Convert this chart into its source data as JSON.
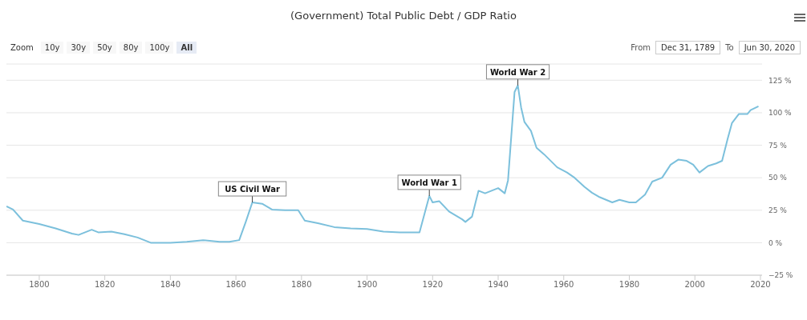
{
  "chart_data": {
    "type": "line",
    "title": "(Government) Total Public Debt / GDP Ratio",
    "x": [
      1790,
      1792,
      1795,
      1800,
      1805,
      1810,
      1812,
      1816,
      1818,
      1822,
      1826,
      1830,
      1834,
      1840,
      1845,
      1850,
      1855,
      1858,
      1861,
      1863,
      1865,
      1868,
      1871,
      1875,
      1879,
      1881,
      1885,
      1890,
      1895,
      1900,
      1905,
      1910,
      1916,
      1919,
      1920,
      1922,
      1925,
      1929,
      1930,
      1932,
      1934,
      1936,
      1940,
      1942,
      1943,
      1945,
      1946,
      1947,
      1948,
      1950,
      1951.7,
      1954,
      1958,
      1961,
      1963.3,
      1966.3,
      1968.6,
      1971,
      1974.8,
      1977,
      1980,
      1982,
      1984.8,
      1987,
      1990,
      1992.6,
      1995,
      1997.5,
      1999.5,
      2001.4,
      2004,
      2006.5,
      2008.3,
      2010,
      2011.3,
      2013.4,
      2016,
      2017,
      2019.4
    ],
    "series": [
      {
        "color": "#7cc0dc",
        "values": [
          28,
          25.5,
          17,
          14.4,
          11,
          7,
          6,
          10,
          8,
          8.5,
          6.5,
          4,
          0,
          0,
          0.7,
          2,
          0.7,
          0.7,
          2,
          16,
          31,
          30,
          25.5,
          25,
          25,
          17,
          15,
          12,
          11,
          10.5,
          8.5,
          8,
          8,
          36,
          31,
          32,
          24,
          18,
          16,
          20,
          40,
          38,
          42,
          38,
          48,
          116,
          121,
          104,
          93,
          86,
          73,
          68,
          58,
          54,
          50,
          43,
          38.5,
          35,
          31,
          33,
          31,
          31,
          37,
          47,
          50,
          60,
          64,
          63,
          60,
          54,
          59,
          61,
          63,
          80,
          92,
          99,
          99,
          102,
          105
        ]
      }
    ],
    "xlim": [
      1789.99,
      2020.5
    ],
    "xticks": [
      1800,
      1820,
      1840,
      1860,
      1880,
      1900,
      1920,
      1940,
      1960,
      1980,
      2000,
      2020
    ],
    "ylim": [
      -25,
      137.5
    ],
    "yticks": [
      {
        "value": -25,
        "label": "−25 %"
      },
      {
        "value": 0,
        "label": "0 %"
      },
      {
        "value": 25,
        "label": "25 %"
      },
      {
        "value": 50,
        "label": "50 %"
      },
      {
        "value": 75,
        "label": "75 %"
      },
      {
        "value": 100,
        "label": "100 %"
      },
      {
        "value": 125,
        "label": "125 %"
      }
    ],
    "grid": "y",
    "marker": "none",
    "line_style": "solid",
    "annotations": [
      "Zoom",
      "10y",
      "30y",
      "50y",
      "80y",
      "100y",
      "All",
      "From",
      "Dec 31, 1789",
      "To",
      "Jun 30, 2020",
      {
        "text": "US Civil War",
        "x": 1865,
        "y": 31
      },
      {
        "text": "World War 1",
        "x": 1919,
        "y": 36
      },
      {
        "text": "World War 2",
        "x": 1946,
        "y": 121
      }
    ]
  }
}
